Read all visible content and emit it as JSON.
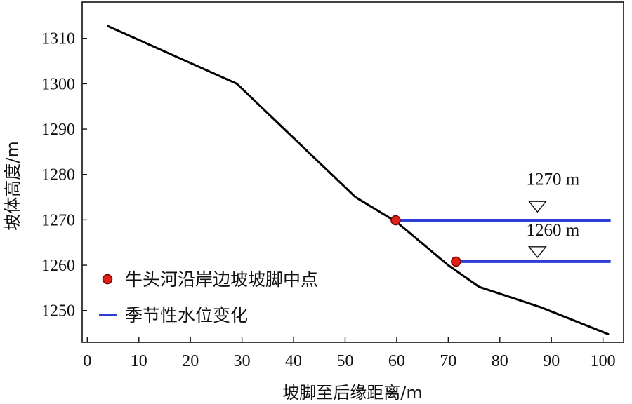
{
  "chart_data": {
    "type": "line",
    "xlabel": "坡脚至后缘距离/m",
    "ylabel": "坡体高度/m",
    "xlim": [
      -1,
      104
    ],
    "ylim": [
      1243,
      1318
    ],
    "xticks": [
      0,
      10,
      20,
      30,
      40,
      50,
      60,
      70,
      80,
      90,
      100
    ],
    "yticks": [
      1250,
      1260,
      1270,
      1280,
      1290,
      1300,
      1310
    ],
    "grid": false,
    "legend_position": "bottom-left",
    "colors": {
      "profile": "#000000",
      "water": "#2b3fd6",
      "marker_fill": "#e0201b",
      "marker_edge": "#7a0000"
    },
    "series": [
      {
        "kind": "profile",
        "x": [
          4,
          29,
          52,
          60,
          70,
          76,
          88,
          101
        ],
        "y": [
          1312.7,
          1300,
          1275,
          1269.5,
          1260,
          1255.2,
          1250.7,
          1244.8
        ]
      },
      {
        "kind": "water",
        "name": "季节性水位变化",
        "levels": [
          {
            "x": [
              59.8,
              101.5
            ],
            "y": 1269.9
          },
          {
            "x": [
              71.5,
              101.5
            ],
            "y": 1260.8
          }
        ]
      },
      {
        "kind": "points",
        "name": "牛头河沿岸边坡坡脚中点",
        "x": [
          59.8,
          71.5
        ],
        "y": [
          1269.9,
          1260.8
        ]
      }
    ],
    "annotations": [
      {
        "text": "1270 m",
        "x": 87.3,
        "y": 1272.9,
        "label_x": 90.3,
        "label_y": 1277.7
      },
      {
        "text": "1260 m",
        "x": 87.3,
        "y": 1262.9,
        "label_x": 90.3,
        "label_y": 1266.5
      }
    ],
    "legend": [
      {
        "marker": "point",
        "label": "牛头河沿岸边坡坡脚中点"
      },
      {
        "marker": "line",
        "label": "季节性水位变化"
      }
    ]
  }
}
